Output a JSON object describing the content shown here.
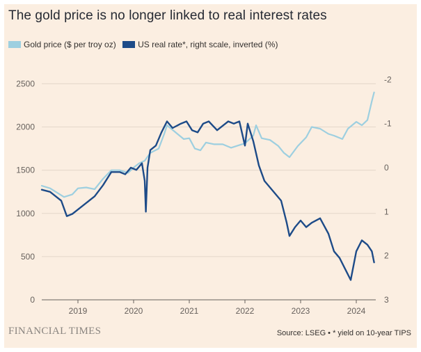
{
  "header": {
    "title": "The gold price is no longer linked to real interest rates"
  },
  "legend": {
    "items": [
      {
        "label": "Gold price ($ per troy oz)",
        "color": "#9dcfe0"
      },
      {
        "label": "US real rate*, right scale, inverted (%)",
        "color": "#1d4b88"
      }
    ]
  },
  "footer": {
    "brand": "FINANCIAL TIMES",
    "source": "Source: LSEG • * yield on 10-year TIPS"
  },
  "chart_data": {
    "type": "line",
    "x_ticks": [
      "2019",
      "2020",
      "2021",
      "2022",
      "2023",
      "2024"
    ],
    "x_range": [
      2018.35,
      2024.35
    ],
    "y_left": {
      "ticks": [
        0,
        500,
        1000,
        1500,
        2000,
        2500
      ],
      "range": [
        0,
        2600
      ]
    },
    "y_right": {
      "ticks": [
        -2,
        -1,
        0,
        1,
        2,
        3
      ],
      "range": [
        3,
        -2.1
      ],
      "inverted": true
    },
    "grid": true,
    "legend_position": "top-left",
    "series": [
      {
        "name": "Gold price ($ per troy oz)",
        "axis": "left",
        "color": "#9dcfe0",
        "x": [
          2018.35,
          2018.5,
          2018.65,
          2018.75,
          2018.9,
          2019.0,
          2019.15,
          2019.3,
          2019.45,
          2019.6,
          2019.75,
          2019.9,
          2020.0,
          2020.1,
          2020.2,
          2020.3,
          2020.45,
          2020.55,
          2020.6,
          2020.75,
          2020.9,
          2021.0,
          2021.1,
          2021.2,
          2021.3,
          2021.45,
          2021.6,
          2021.75,
          2021.9,
          2022.0,
          2022.15,
          2022.2,
          2022.3,
          2022.45,
          2022.6,
          2022.7,
          2022.8,
          2022.95,
          2023.1,
          2023.2,
          2023.35,
          2023.5,
          2023.6,
          2023.75,
          2023.85,
          2024.0,
          2024.1,
          2024.2,
          2024.28,
          2024.32
        ],
        "y": [
          1320,
          1290,
          1230,
          1190,
          1220,
          1290,
          1300,
          1280,
          1400,
          1500,
          1500,
          1470,
          1530,
          1580,
          1610,
          1700,
          1750,
          1920,
          2020,
          1940,
          1860,
          1870,
          1750,
          1730,
          1820,
          1800,
          1800,
          1760,
          1790,
          1810,
          1900,
          2020,
          1870,
          1850,
          1780,
          1700,
          1650,
          1780,
          1880,
          2000,
          1980,
          1920,
          1900,
          1860,
          1980,
          2060,
          2020,
          2080,
          2300,
          2400
        ]
      },
      {
        "name": "US real rate*, right scale, inverted (%)",
        "axis": "right",
        "color": "#1d4b88",
        "x": [
          2018.35,
          2018.5,
          2018.6,
          2018.7,
          2018.8,
          2018.9,
          2019.0,
          2019.15,
          2019.3,
          2019.45,
          2019.6,
          2019.75,
          2019.85,
          2019.95,
          2020.05,
          2020.15,
          2020.2,
          2020.22,
          2020.25,
          2020.3,
          2020.4,
          2020.5,
          2020.6,
          2020.7,
          2020.85,
          2020.95,
          2021.05,
          2021.15,
          2021.25,
          2021.35,
          2021.5,
          2021.6,
          2021.7,
          2021.8,
          2021.9,
          2022.0,
          2022.05,
          2022.15,
          2022.25,
          2022.35,
          2022.45,
          2022.55,
          2022.65,
          2022.75,
          2022.8,
          2022.9,
          2023.0,
          2023.1,
          2023.2,
          2023.35,
          2023.5,
          2023.6,
          2023.7,
          2023.8,
          2023.9,
          2024.0,
          2024.1,
          2024.2,
          2024.28,
          2024.32
        ],
        "y": [
          0.5,
          0.55,
          0.65,
          0.75,
          1.1,
          1.05,
          0.95,
          0.8,
          0.65,
          0.4,
          0.1,
          0.1,
          0.15,
          0.0,
          0.05,
          -0.1,
          0.3,
          1.0,
          0.0,
          -0.4,
          -0.5,
          -0.8,
          -1.05,
          -0.9,
          -1.0,
          -1.05,
          -0.85,
          -0.8,
          -1.0,
          -1.05,
          -0.85,
          -0.95,
          -1.05,
          -1.0,
          -1.05,
          -0.5,
          -1.0,
          -0.6,
          -0.05,
          0.3,
          0.45,
          0.6,
          0.75,
          1.25,
          1.55,
          1.35,
          1.2,
          1.35,
          1.25,
          1.15,
          1.5,
          1.9,
          2.05,
          2.3,
          2.55,
          1.9,
          1.65,
          1.75,
          1.9,
          2.15
        ]
      }
    ]
  }
}
